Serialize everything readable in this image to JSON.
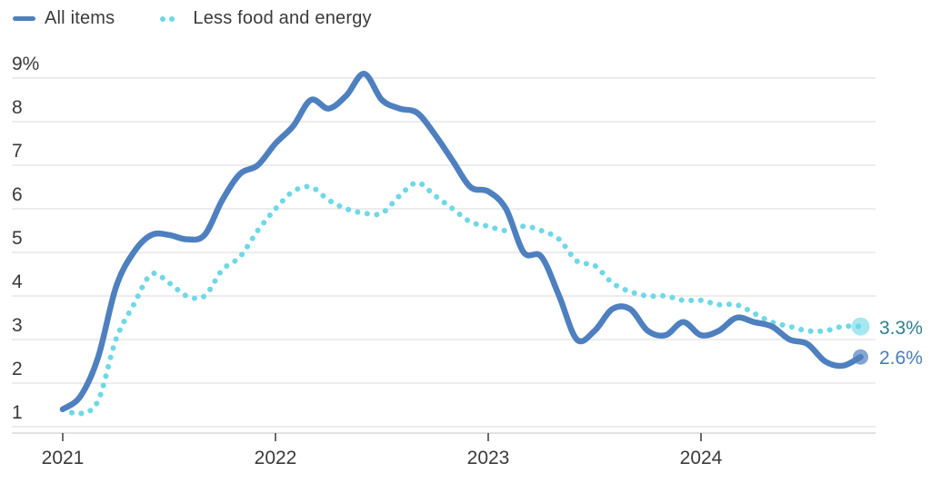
{
  "legend": {
    "items": [
      {
        "label": "All items",
        "swatch": "solid-line"
      },
      {
        "label": "Less food and energy",
        "swatch": "dots"
      }
    ]
  },
  "colors": {
    "all_items_line": "#4e80bf",
    "core_line": "#6fd8e6",
    "all_items_label": "#4a7cba",
    "core_label": "#2e7e8e",
    "gridline": "#d9d9d9",
    "axis_line": "#c6c6c6",
    "tick": "#3a3a3a",
    "text": "#3a3a3a"
  },
  "chart_data": {
    "type": "line",
    "x_unit": "month",
    "x_start": "2021-01",
    "x_end": "2024-10",
    "x_tick_labels": [
      "2021",
      "2022",
      "2023",
      "2024"
    ],
    "y_tick_labels": [
      "9%",
      "8",
      "7",
      "6",
      "5",
      "4",
      "3",
      "2",
      "1"
    ],
    "ylim": [
      1,
      9
    ],
    "grid": true,
    "legend_position": "top-left",
    "series": [
      {
        "name": "All items",
        "style": "solid",
        "color": "#4e80bf",
        "end_label": "2.6%",
        "values": [
          1.4,
          1.7,
          2.6,
          4.2,
          5.0,
          5.4,
          5.4,
          5.3,
          5.4,
          6.2,
          6.8,
          7.0,
          7.5,
          7.9,
          8.5,
          8.3,
          8.6,
          9.1,
          8.5,
          8.3,
          8.2,
          7.7,
          7.1,
          6.5,
          6.4,
          6.0,
          5.0,
          4.9,
          4.0,
          3.0,
          3.2,
          3.7,
          3.7,
          3.2,
          3.1,
          3.4,
          3.1,
          3.2,
          3.5,
          3.4,
          3.3,
          3.0,
          2.9,
          2.5,
          2.4,
          2.6
        ]
      },
      {
        "name": "Less food and energy",
        "style": "dotted",
        "color": "#6fd8e6",
        "end_label": "3.3%",
        "values": [
          1.4,
          1.3,
          1.6,
          3.0,
          3.8,
          4.5,
          4.3,
          4.0,
          4.0,
          4.6,
          4.9,
          5.5,
          6.0,
          6.4,
          6.5,
          6.2,
          6.0,
          5.9,
          5.9,
          6.3,
          6.6,
          6.3,
          6.0,
          5.7,
          5.6,
          5.5,
          5.6,
          5.5,
          5.3,
          4.8,
          4.7,
          4.3,
          4.1,
          4.0,
          4.0,
          3.9,
          3.9,
          3.8,
          3.8,
          3.6,
          3.4,
          3.3,
          3.2,
          3.2,
          3.3,
          3.3
        ]
      }
    ]
  }
}
